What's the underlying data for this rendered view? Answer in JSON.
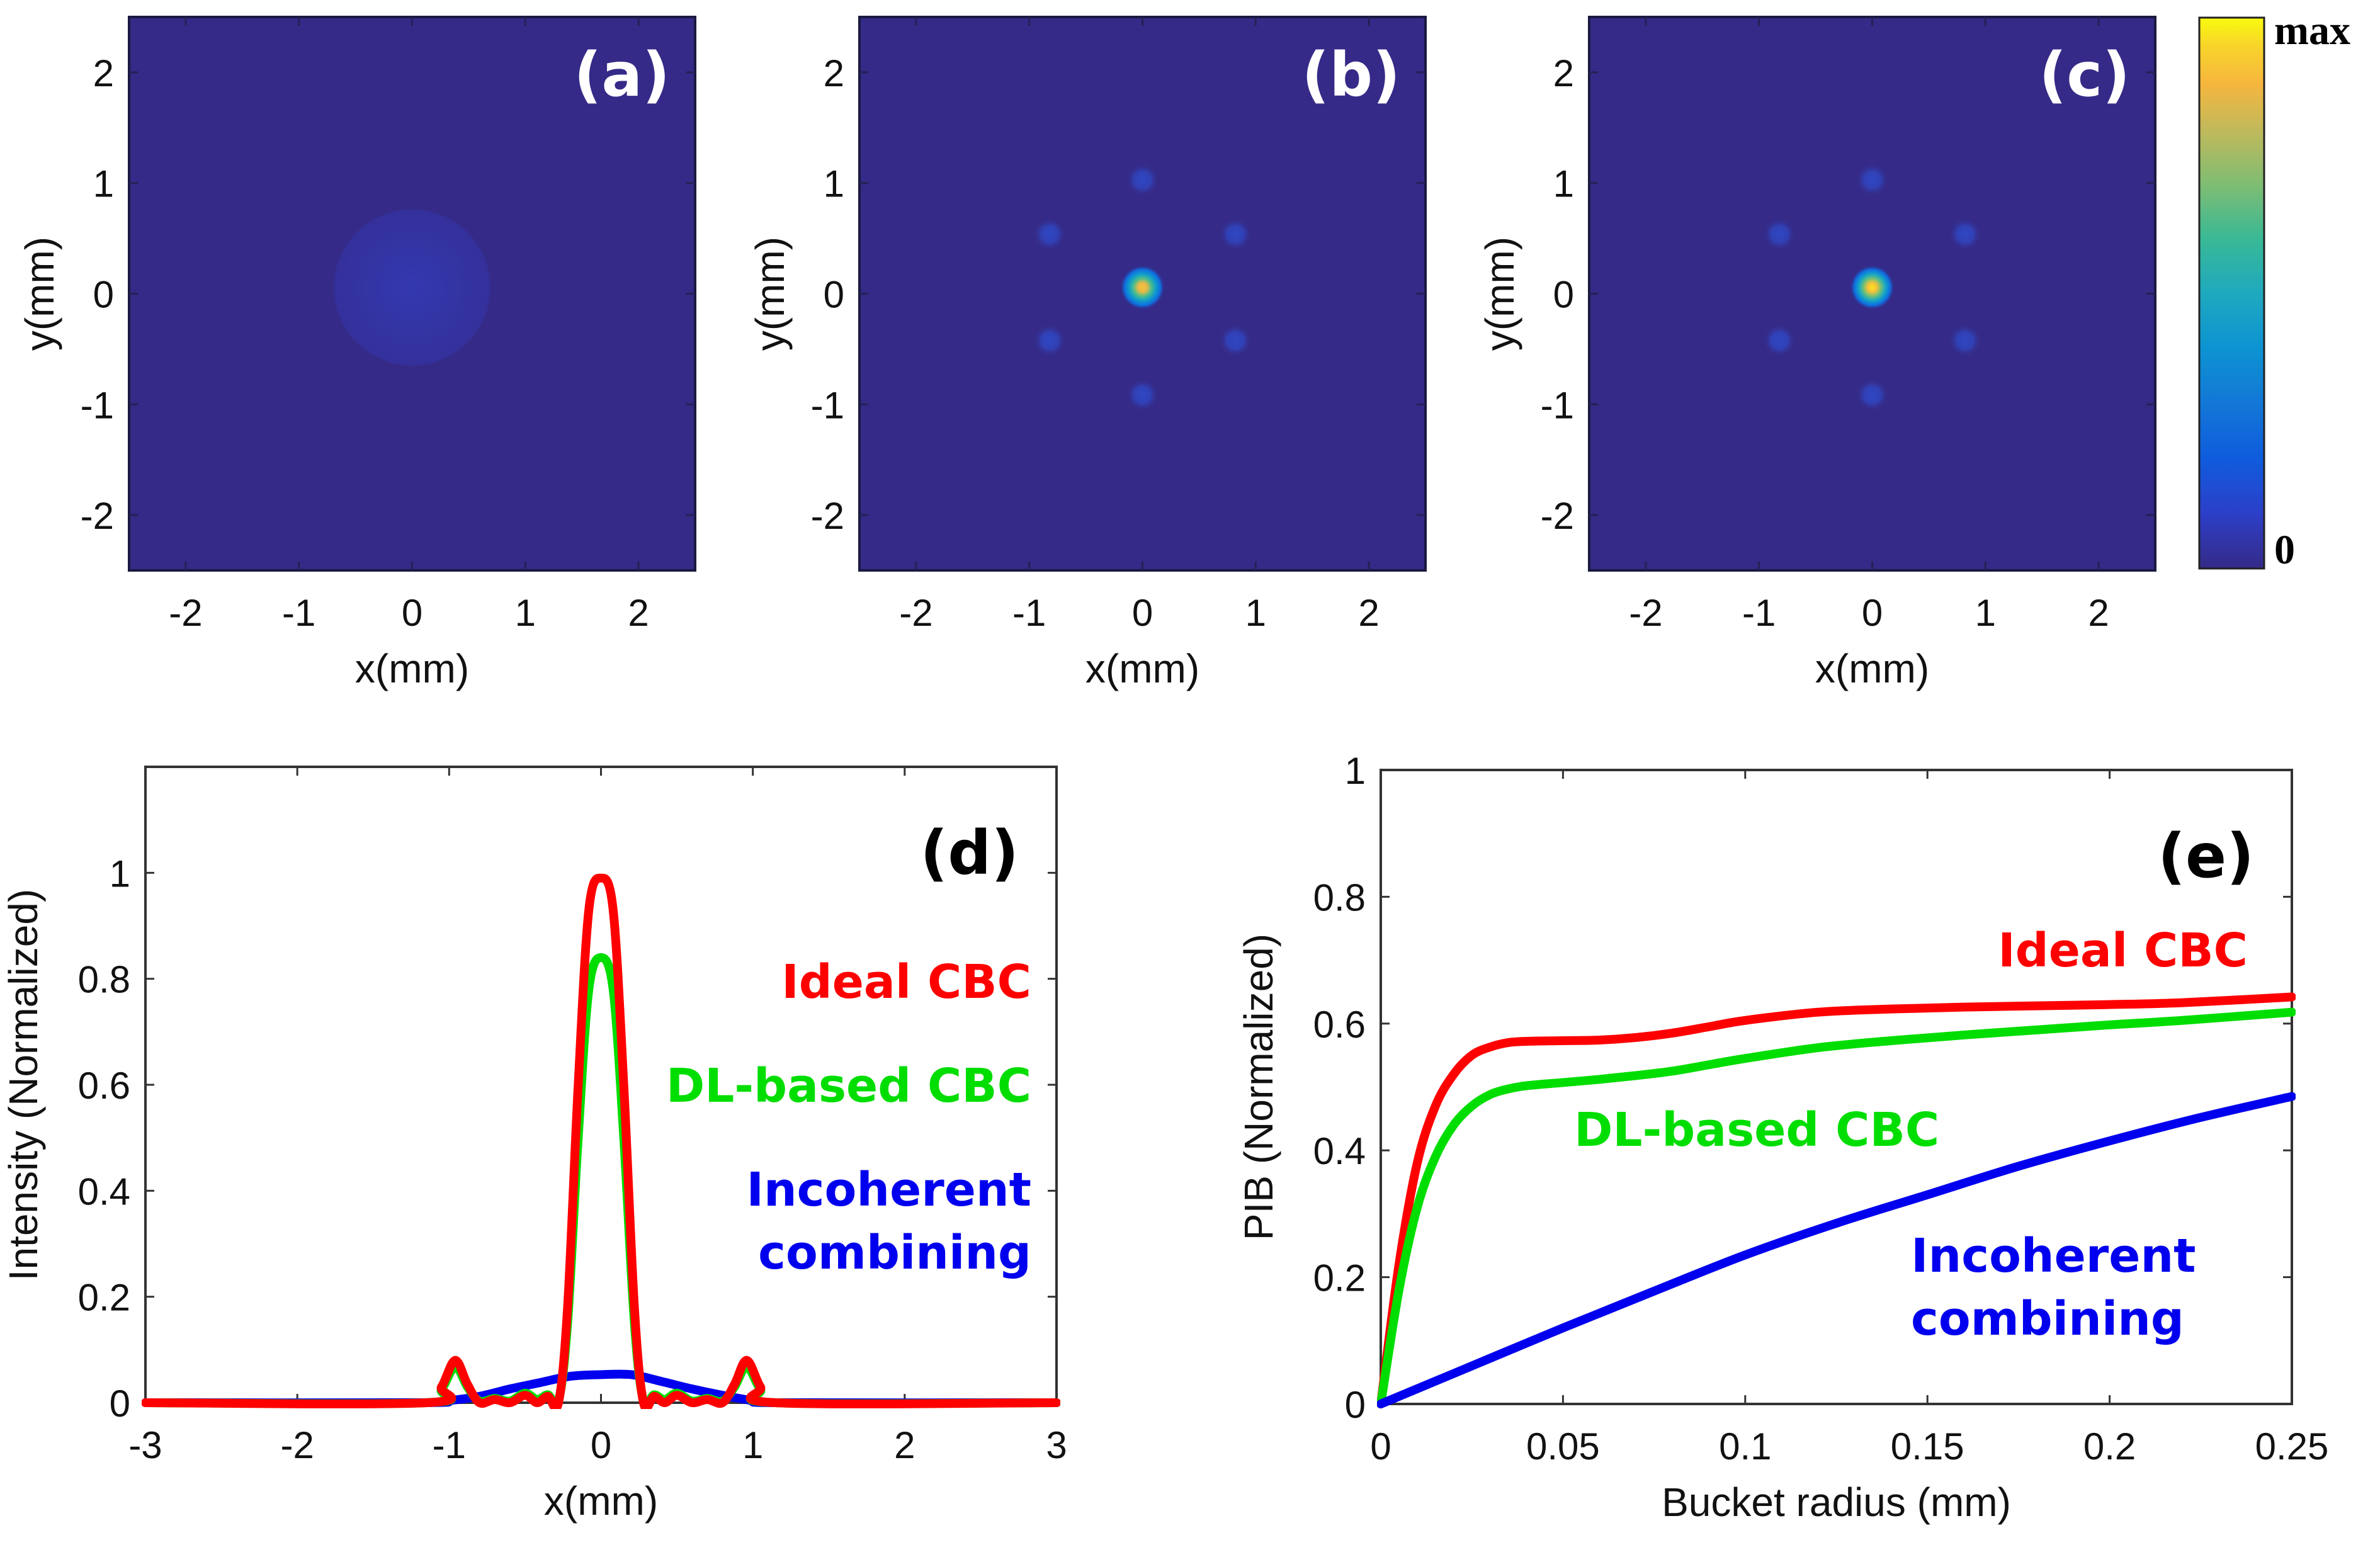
{
  "figure": {
    "colorbar": {
      "max_label": "max",
      "min_label": "0",
      "colormap": "parula"
    },
    "series_colors": {
      "ideal": "#ff0000",
      "dl": "#00dd00",
      "incoherent": "#0000ee"
    }
  },
  "chart_data": [
    {
      "id": "a",
      "type": "heatmap",
      "panel_label": "(a)",
      "xlabel": "x(mm)",
      "ylabel": "y(mm)",
      "xlim": [
        -2.5,
        2.5
      ],
      "ylim": [
        -2.5,
        2.5
      ],
      "xticks": [
        -2,
        -1,
        0,
        1,
        2
      ],
      "yticks": [
        -2,
        -1,
        0,
        1,
        2
      ],
      "xtick_labels": [
        "-2",
        "-1",
        "0",
        "1",
        "2"
      ],
      "ytick_labels": [
        "-2",
        "-1",
        "0",
        "1",
        "2"
      ],
      "background_level": 0.0,
      "spots": [
        {
          "x": 0,
          "y": 0,
          "radius": 0.7,
          "level": 0.04,
          "kind": "diffuse-disk"
        }
      ]
    },
    {
      "id": "b",
      "type": "heatmap",
      "panel_label": "(b)",
      "xlabel": "x(mm)",
      "ylabel": "y(mm)",
      "xlim": [
        -2.5,
        2.5
      ],
      "ylim": [
        -2.5,
        2.5
      ],
      "xticks": [
        -2,
        -1,
        0,
        1,
        2
      ],
      "yticks": [
        -2,
        -1,
        0,
        1,
        2
      ],
      "xtick_labels": [
        "-2",
        "-1",
        "0",
        "1",
        "2"
      ],
      "ytick_labels": [
        "-2",
        "-1",
        "0",
        "1",
        "2"
      ],
      "background_level": 0.0,
      "spots": [
        {
          "x": 0,
          "y": 0,
          "radius": 0.2,
          "level": 0.85,
          "kind": "main-lobe"
        },
        {
          "x": 0,
          "y": 0.95,
          "radius": 0.15,
          "level": 0.08,
          "kind": "side-lobe"
        },
        {
          "x": 0,
          "y": -0.95,
          "radius": 0.15,
          "level": 0.08,
          "kind": "side-lobe"
        },
        {
          "x": -0.82,
          "y": 0.47,
          "radius": 0.15,
          "level": 0.08,
          "kind": "side-lobe"
        },
        {
          "x": 0.82,
          "y": 0.47,
          "radius": 0.15,
          "level": 0.08,
          "kind": "side-lobe"
        },
        {
          "x": -0.82,
          "y": -0.47,
          "radius": 0.15,
          "level": 0.08,
          "kind": "side-lobe"
        },
        {
          "x": 0.82,
          "y": -0.47,
          "radius": 0.15,
          "level": 0.08,
          "kind": "side-lobe"
        }
      ]
    },
    {
      "id": "c",
      "type": "heatmap",
      "panel_label": "(c)",
      "xlabel": "x(mm)",
      "ylabel": "y(mm)",
      "xlim": [
        -2.5,
        2.5
      ],
      "ylim": [
        -2.5,
        2.5
      ],
      "xticks": [
        -2,
        -1,
        0,
        1,
        2
      ],
      "yticks": [
        -2,
        -1,
        0,
        1,
        2
      ],
      "xtick_labels": [
        "-2",
        "-1",
        "0",
        "1",
        "2"
      ],
      "ytick_labels": [
        "-2",
        "-1",
        "0",
        "1",
        "2"
      ],
      "background_level": 0.0,
      "spots": [
        {
          "x": 0,
          "y": 0,
          "radius": 0.2,
          "level": 1.0,
          "kind": "main-lobe"
        },
        {
          "x": 0,
          "y": 0.95,
          "radius": 0.15,
          "level": 0.08,
          "kind": "side-lobe"
        },
        {
          "x": 0,
          "y": -0.95,
          "radius": 0.15,
          "level": 0.08,
          "kind": "side-lobe"
        },
        {
          "x": -0.82,
          "y": 0.47,
          "radius": 0.15,
          "level": 0.08,
          "kind": "side-lobe"
        },
        {
          "x": 0.82,
          "y": 0.47,
          "radius": 0.15,
          "level": 0.08,
          "kind": "side-lobe"
        },
        {
          "x": -0.82,
          "y": -0.47,
          "radius": 0.15,
          "level": 0.08,
          "kind": "side-lobe"
        },
        {
          "x": 0.82,
          "y": -0.47,
          "radius": 0.15,
          "level": 0.08,
          "kind": "side-lobe"
        }
      ]
    },
    {
      "id": "d",
      "type": "line",
      "panel_label": "(d)",
      "xlabel": "x(mm)",
      "ylabel": "Intensity (Normalized)",
      "xlim": [
        -3,
        3
      ],
      "ylim": [
        0,
        1.2
      ],
      "xticks": [
        -3,
        -2,
        -1,
        0,
        1,
        2,
        3
      ],
      "xtick_labels": [
        "-3",
        "-2",
        "-1",
        "0",
        "1",
        "2",
        "3"
      ],
      "yticks": [
        0,
        0.2,
        0.4,
        0.6,
        0.8,
        1
      ],
      "ytick_labels": [
        "0",
        "0.2",
        "0.4",
        "0.6",
        "0.8",
        "1"
      ],
      "grid": false,
      "annotations": [
        {
          "text": "Ideal CBC",
          "series": "ideal"
        },
        {
          "text": "DL-based CBC",
          "series": "dl"
        },
        {
          "text": "Incoherent",
          "series": "incoherent"
        },
        {
          "text": "combining",
          "series": "incoherent"
        }
      ],
      "series": [
        {
          "name": "Incoherent combining",
          "key": "incoherent",
          "x": [
            -3,
            -1.2,
            -1.0,
            -0.8,
            -0.6,
            -0.4,
            -0.2,
            0,
            0.2,
            0.4,
            0.6,
            0.8,
            1.0,
            1.2,
            3
          ],
          "y": [
            0,
            0,
            0.004,
            0.012,
            0.026,
            0.038,
            0.05,
            0.053,
            0.053,
            0.04,
            0.026,
            0.014,
            0.004,
            0,
            0
          ]
        },
        {
          "name": "DL-based CBC",
          "key": "dl",
          "x": [
            -3,
            -1.15,
            -1.05,
            -0.96,
            -0.88,
            -0.8,
            -0.7,
            -0.6,
            -0.5,
            -0.42,
            -0.35,
            -0.28,
            -0.22,
            -0.15,
            -0.08,
            0,
            0.08,
            0.15,
            0.22,
            0.28,
            0.35,
            0.42,
            0.5,
            0.6,
            0.7,
            0.8,
            0.88,
            0.96,
            1.05,
            1.15,
            3
          ],
          "y": [
            0,
            0,
            0.025,
            0.068,
            0.03,
            0.003,
            0.008,
            0.003,
            0.018,
            0.006,
            0.015,
            0.004,
            0.15,
            0.5,
            0.78,
            0.84,
            0.78,
            0.5,
            0.15,
            0.004,
            0.015,
            0.006,
            0.018,
            0.003,
            0.008,
            0.003,
            0.03,
            0.068,
            0.025,
            0,
            0
          ]
        },
        {
          "name": "Ideal CBC",
          "key": "ideal",
          "x": [
            -3,
            -1.15,
            -1.05,
            -0.96,
            -0.88,
            -0.8,
            -0.7,
            -0.6,
            -0.5,
            -0.42,
            -0.35,
            -0.28,
            -0.22,
            -0.15,
            -0.08,
            0,
            0.08,
            0.15,
            0.22,
            0.28,
            0.35,
            0.42,
            0.5,
            0.6,
            0.7,
            0.8,
            0.88,
            0.96,
            1.05,
            1.15,
            3
          ],
          "y": [
            0,
            0,
            0.03,
            0.08,
            0.035,
            0,
            0.006,
            0,
            0.014,
            0,
            0.012,
            0,
            0.18,
            0.6,
            0.93,
            0.99,
            0.93,
            0.6,
            0.18,
            0,
            0.012,
            0,
            0.014,
            0,
            0.006,
            0,
            0.035,
            0.08,
            0.03,
            0,
            0
          ]
        }
      ]
    },
    {
      "id": "e",
      "type": "line",
      "panel_label": "(e)",
      "xlabel": "Bucket radius (mm)",
      "ylabel": "PIB (Normalized)",
      "xlim": [
        0,
        0.25
      ],
      "ylim": [
        0,
        1
      ],
      "xticks": [
        0,
        0.05,
        0.1,
        0.15,
        0.2,
        0.25
      ],
      "xtick_labels": [
        "0",
        "0.05",
        "0.1",
        "0.15",
        "0.2",
        "0.25"
      ],
      "yticks": [
        0,
        0.2,
        0.4,
        0.6,
        0.8,
        1
      ],
      "ytick_labels": [
        "0",
        "0.2",
        "0.4",
        "0.6",
        "0.8",
        "1"
      ],
      "grid": false,
      "annotations": [
        {
          "text": "Ideal CBC",
          "series": "ideal"
        },
        {
          "text": "DL-based CBC",
          "series": "dl"
        },
        {
          "text": "Incoherent",
          "series": "incoherent"
        },
        {
          "text": "combining",
          "series": "incoherent"
        }
      ],
      "series": [
        {
          "name": "Ideal CBC",
          "key": "ideal",
          "x": [
            0,
            0.005,
            0.01,
            0.015,
            0.02,
            0.025,
            0.03,
            0.035,
            0.04,
            0.05,
            0.06,
            0.07,
            0.08,
            0.09,
            0.1,
            0.12,
            0.14,
            0.16,
            0.18,
            0.2,
            0.22,
            0.25
          ],
          "y": [
            0,
            0.22,
            0.38,
            0.47,
            0.52,
            0.55,
            0.563,
            0.57,
            0.572,
            0.573,
            0.574,
            0.578,
            0.585,
            0.595,
            0.605,
            0.618,
            0.623,
            0.626,
            0.628,
            0.63,
            0.633,
            0.642
          ]
        },
        {
          "name": "DL-based CBC",
          "key": "dl",
          "x": [
            0,
            0.005,
            0.01,
            0.015,
            0.02,
            0.025,
            0.03,
            0.035,
            0.04,
            0.05,
            0.06,
            0.07,
            0.08,
            0.09,
            0.1,
            0.12,
            0.14,
            0.16,
            0.18,
            0.2,
            0.22,
            0.25
          ],
          "y": [
            0,
            0.18,
            0.31,
            0.39,
            0.44,
            0.47,
            0.488,
            0.497,
            0.502,
            0.507,
            0.512,
            0.518,
            0.525,
            0.535,
            0.545,
            0.562,
            0.573,
            0.582,
            0.59,
            0.598,
            0.605,
            0.618
          ]
        },
        {
          "name": "Incoherent combining",
          "key": "incoherent",
          "x": [
            0,
            0.025,
            0.05,
            0.075,
            0.1,
            0.125,
            0.15,
            0.175,
            0.2,
            0.225,
            0.25
          ],
          "y": [
            0,
            0.06,
            0.12,
            0.178,
            0.235,
            0.285,
            0.33,
            0.375,
            0.415,
            0.452,
            0.485
          ]
        }
      ]
    }
  ]
}
